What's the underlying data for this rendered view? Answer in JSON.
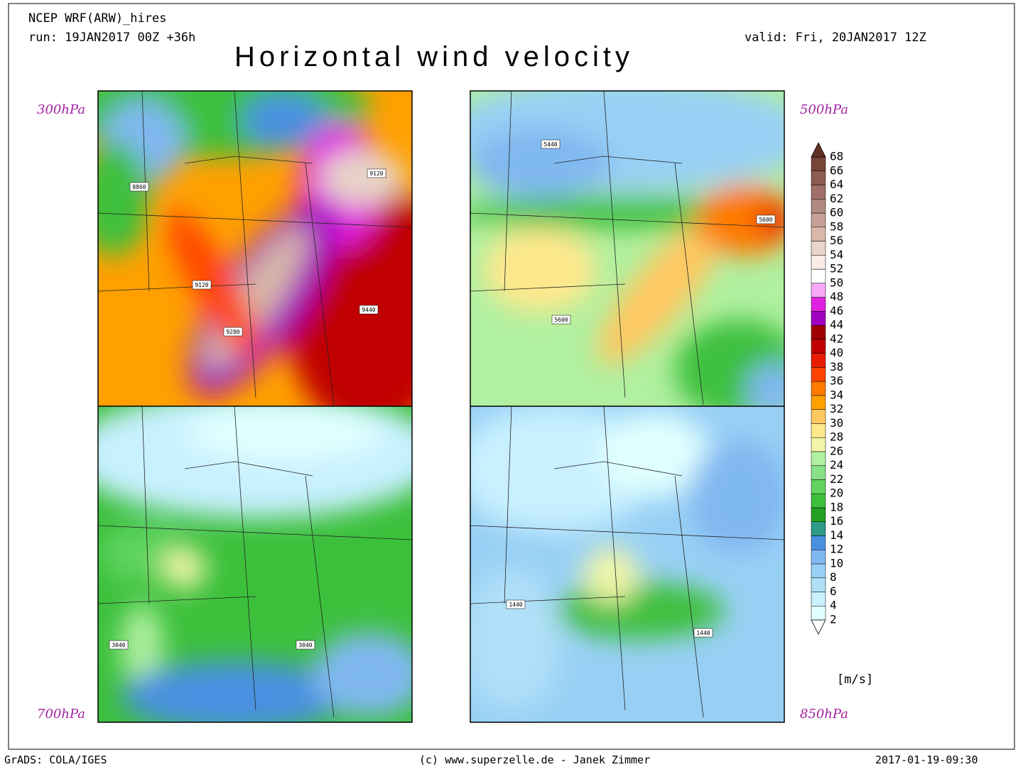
{
  "header": {
    "model": "NCEP WRF(ARW)_hires",
    "run": "run: 19JAN2017 00Z +36h",
    "valid": "valid: Fri, 20JAN2017 12Z",
    "title": "Horizontal wind velocity"
  },
  "panels": [
    {
      "level": "300hPa",
      "contour_labels": [
        "8860",
        "9120",
        "9120",
        "9280",
        "9440"
      ]
    },
    {
      "level": "500hPa",
      "contour_labels": [
        "5440",
        "5600",
        "5600"
      ]
    },
    {
      "level": "700hPa",
      "contour_labels": [
        "3040",
        "3040"
      ]
    },
    {
      "level": "850hPa",
      "contour_labels": [
        "1440",
        "1440"
      ]
    }
  ],
  "colorbar": {
    "levels": [
      2,
      4,
      6,
      8,
      10,
      12,
      14,
      16,
      18,
      20,
      22,
      24,
      26,
      28,
      30,
      32,
      34,
      36,
      38,
      40,
      42,
      44,
      46,
      48,
      50,
      52,
      54,
      56,
      58,
      60,
      62,
      64,
      66,
      68
    ],
    "colors": [
      "#ffffff",
      "#e0ffff",
      "#c8f0ff",
      "#b0e0f8",
      "#98d0f5",
      "#80b8f0",
      "#4a90e0",
      "#2e9a88",
      "#22a022",
      "#3cc03c",
      "#5fd45f",
      "#88e088",
      "#b0f0a0",
      "#f0f5a8",
      "#ffe88c",
      "#ffc860",
      "#ffa000",
      "#ff7a00",
      "#ff4400",
      "#e81c00",
      "#c00000",
      "#a00000",
      "#a000c0",
      "#e020e0",
      "#f8a8f8",
      "#ffffff",
      "#f8ece4",
      "#e8d4c8",
      "#d8b8a8",
      "#c8a098",
      "#b08880",
      "#a07068",
      "#8c5c50",
      "#784438",
      "#603020"
    ],
    "unit": "[m/s]"
  },
  "footer": {
    "software": "GrADS: COLA/IGES",
    "credit": "(c) www.superzelle.de - Janek Zimmer",
    "timestamp": "2017-01-19-09:30"
  }
}
